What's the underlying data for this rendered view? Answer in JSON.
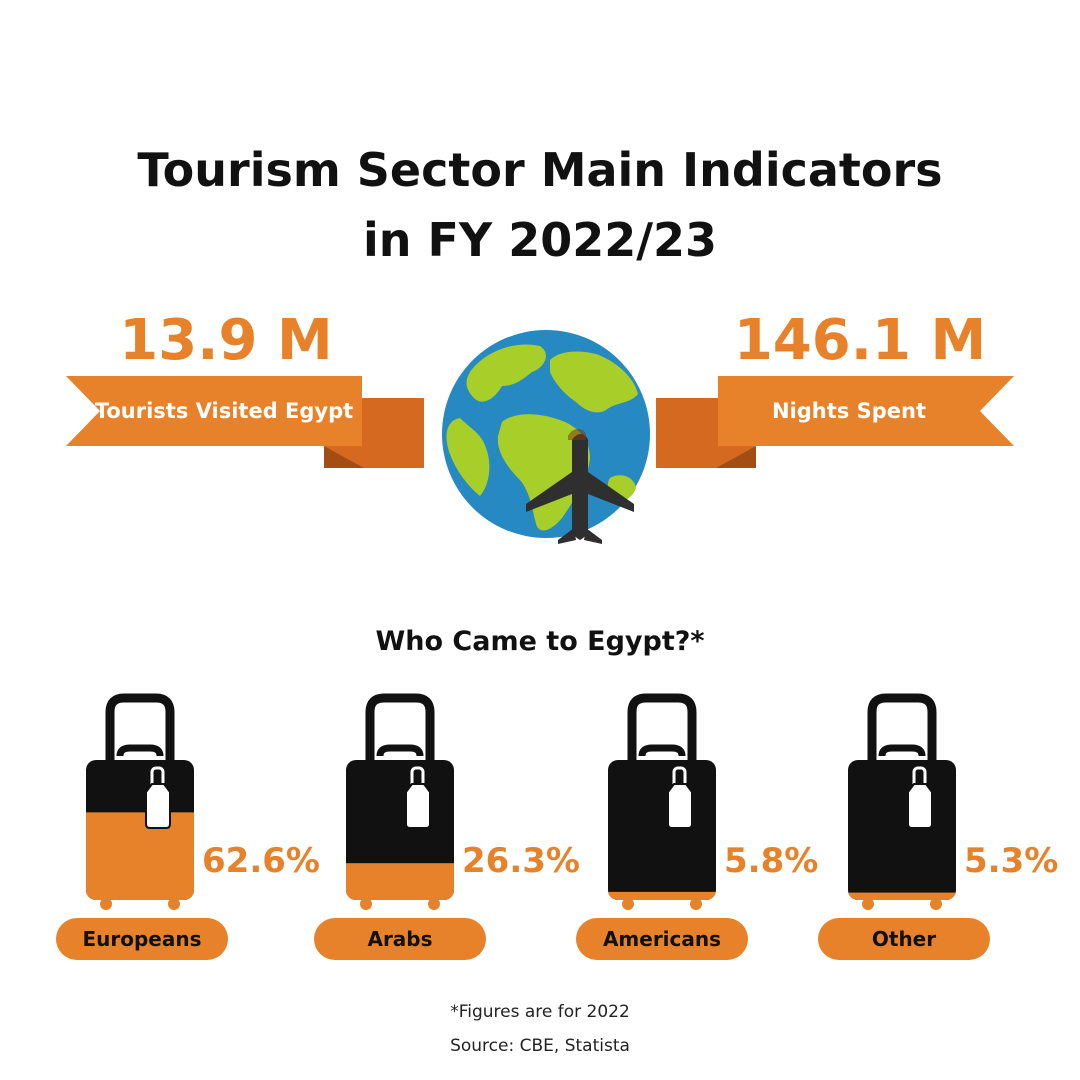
{
  "title": {
    "line1": "Tourism Sector Main Indicators",
    "line2": "in FY 2022/23"
  },
  "stats": [
    {
      "value": "13.9 M",
      "label": "Tourists Visited Egypt"
    },
    {
      "value": "146.1 M",
      "label": "Nights Spent"
    }
  ],
  "subtitle": "Who Came to Egypt?*",
  "chart_data": {
    "type": "bar",
    "categories": [
      "Europeans",
      "Arabs",
      "Americans",
      "Other"
    ],
    "values": [
      62.6,
      26.3,
      5.8,
      5.3
    ],
    "value_labels": [
      "62.6%",
      "26.3%",
      "5.8%",
      "5.3%"
    ],
    "unit": "%",
    "ylim": [
      0,
      100
    ]
  },
  "footnote": "*Figures are for 2022",
  "source": "Source: CBE, Statista",
  "colors": {
    "accent": "#e8822a",
    "accent_dark": "#d4691f",
    "text": "#111111",
    "luggage": "#111111",
    "ocean": "#2789c2",
    "land": "#a7ce29",
    "plane": "#2f2f2f"
  }
}
